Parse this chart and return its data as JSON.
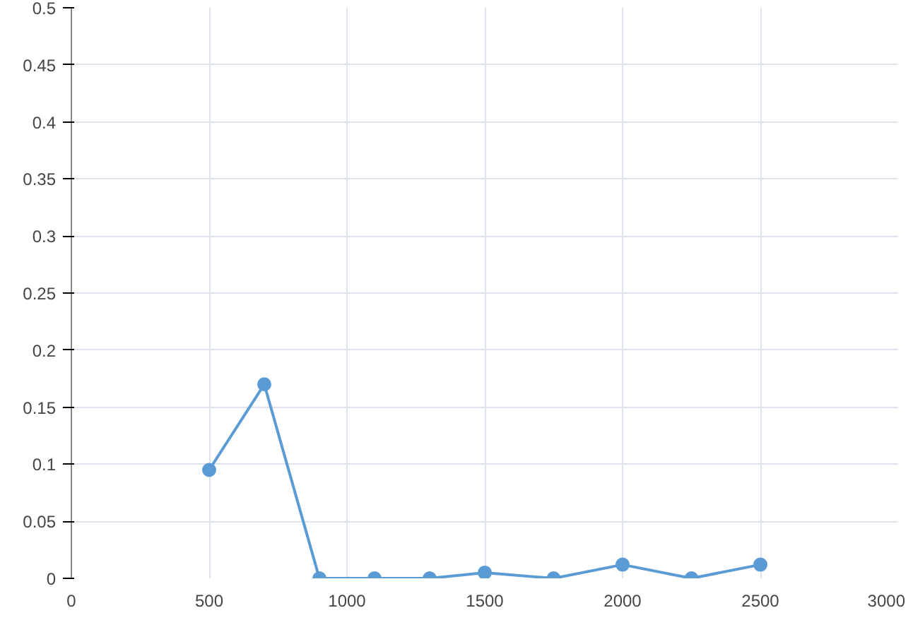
{
  "chart_data": {
    "type": "line",
    "x": [
      500,
      700,
      900,
      1100,
      1300,
      1500,
      1750,
      2000,
      2250,
      2500
    ],
    "series": [
      {
        "color": "#5b9bd5",
        "values": [
          0.095,
          0.17,
          0,
          0,
          0,
          0.005,
          0,
          0.012,
          0,
          0.012
        ]
      }
    ],
    "xlim": [
      0,
      3000
    ],
    "xticks": [
      0,
      500,
      1000,
      1500,
      2000,
      2500,
      3000
    ],
    "ylim": [
      0,
      0.5
    ],
    "yticks": [
      0,
      0.05,
      0.1,
      0.15,
      0.2,
      0.25,
      0.3,
      0.35,
      0.4,
      0.45,
      0.5
    ],
    "grid": true,
    "marker": "circle",
    "line_style": "solid"
  }
}
